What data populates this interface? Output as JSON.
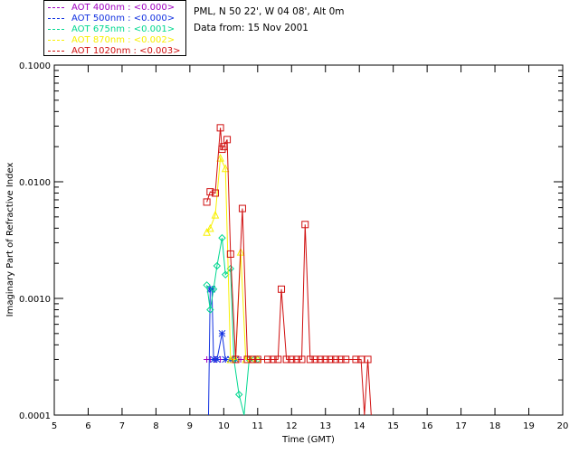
{
  "header": {
    "site": "PML, N 50 22', W 04 08', Alt 0m",
    "date": "Data from: 15 Nov 2001"
  },
  "legend": [
    {
      "label": "AOT  400nm : <0.000>",
      "color": "#a000c0"
    },
    {
      "label": "AOT  500nm : <0.000>",
      "color": "#1030e0"
    },
    {
      "label": "AOT  675nm : <0.001>",
      "color": "#00d890"
    },
    {
      "label": "AOT  870nm : <0.002>",
      "color": "#f8f000"
    },
    {
      "label": "AOT 1020nm : <0.003>",
      "color": "#d01010"
    }
  ],
  "chart_data": {
    "type": "line",
    "xlabel": "Time (GMT)",
    "ylabel": "Imaginary Part of Refractive Index",
    "xlim": [
      5,
      20
    ],
    "ylim": [
      0.0001,
      0.1
    ],
    "yscale": "log",
    "xticks": [
      "5",
      "6",
      "7",
      "8",
      "9",
      "10",
      "11",
      "12",
      "13",
      "14",
      "15",
      "16",
      "17",
      "18",
      "19",
      "20"
    ],
    "yticks": [
      "0.0001",
      "0.0010",
      "0.0100",
      "0.1000"
    ],
    "series": [
      {
        "name": "AOT  400nm : <0.000>",
        "color": "#a000c0",
        "marker": "plus",
        "x": [
          9.5,
          9.6,
          9.75,
          9.9,
          10.05,
          10.2,
          10.35,
          10.5
        ],
        "y": [
          0.0003,
          0.0003,
          0.0003,
          0.0003,
          0.0003,
          0.0003,
          0.0003,
          0.0003
        ]
      },
      {
        "name": "AOT  500nm : <0.000>",
        "color": "#1030e0",
        "marker": "asterisk",
        "x": [
          9.55,
          9.6,
          9.65,
          9.7,
          9.8,
          9.95,
          10.05,
          10.2,
          10.35
        ],
        "y": [
          8e-05,
          0.0012,
          0.0012,
          0.0003,
          0.0003,
          0.0005,
          0.0003,
          0.0003,
          0.0003
        ]
      },
      {
        "name": "AOT  675nm : <0.001>",
        "color": "#00d890",
        "marker": "diamond",
        "x": [
          9.5,
          9.6,
          9.7,
          9.8,
          9.95,
          10.05,
          10.2,
          10.3,
          10.45,
          10.6,
          10.75,
          10.9,
          11.0
        ],
        "y": [
          0.0013,
          0.0008,
          0.0012,
          0.0019,
          0.0033,
          0.0016,
          0.0018,
          0.0003,
          0.00015,
          9e-05,
          0.0003,
          0.0003,
          0.0003
        ]
      },
      {
        "name": "AOT  870nm : <0.002>",
        "color": "#f8f000",
        "marker": "triangle",
        "x": [
          9.5,
          9.6,
          9.75,
          9.9,
          10.05,
          10.2,
          10.35,
          10.5,
          10.65,
          10.8,
          11.0
        ],
        "y": [
          0.0037,
          0.004,
          0.0052,
          0.016,
          0.013,
          0.0003,
          0.0003,
          0.0025,
          0.0003,
          0.0003,
          0.0003
        ]
      },
      {
        "name": "AOT 1020nm : <0.003>",
        "color": "#d01010",
        "marker": "square",
        "x": [
          9.5,
          9.6,
          9.75,
          9.9,
          9.95,
          10.0,
          10.1,
          10.2,
          10.35,
          10.55,
          10.7,
          10.85,
          11.0,
          11.3,
          11.45,
          11.6,
          11.7,
          11.85,
          12.0,
          12.15,
          12.3,
          12.4,
          12.55,
          12.7,
          12.85,
          13.0,
          13.15,
          13.3,
          13.45,
          13.6,
          13.9,
          14.05,
          14.15,
          14.25,
          14.35
        ],
        "y": [
          0.0067,
          0.0082,
          0.008,
          0.029,
          0.019,
          0.02,
          0.023,
          0.0024,
          0.0003,
          0.0059,
          0.0003,
          0.0003,
          0.0003,
          0.0003,
          0.0003,
          0.0003,
          0.0012,
          0.0003,
          0.0003,
          0.0003,
          0.0003,
          0.0043,
          0.0003,
          0.0003,
          0.0003,
          0.0003,
          0.0003,
          0.0003,
          0.0003,
          0.0003,
          0.0003,
          0.0003,
          8e-05,
          0.0003,
          8e-05
        ]
      }
    ]
  }
}
